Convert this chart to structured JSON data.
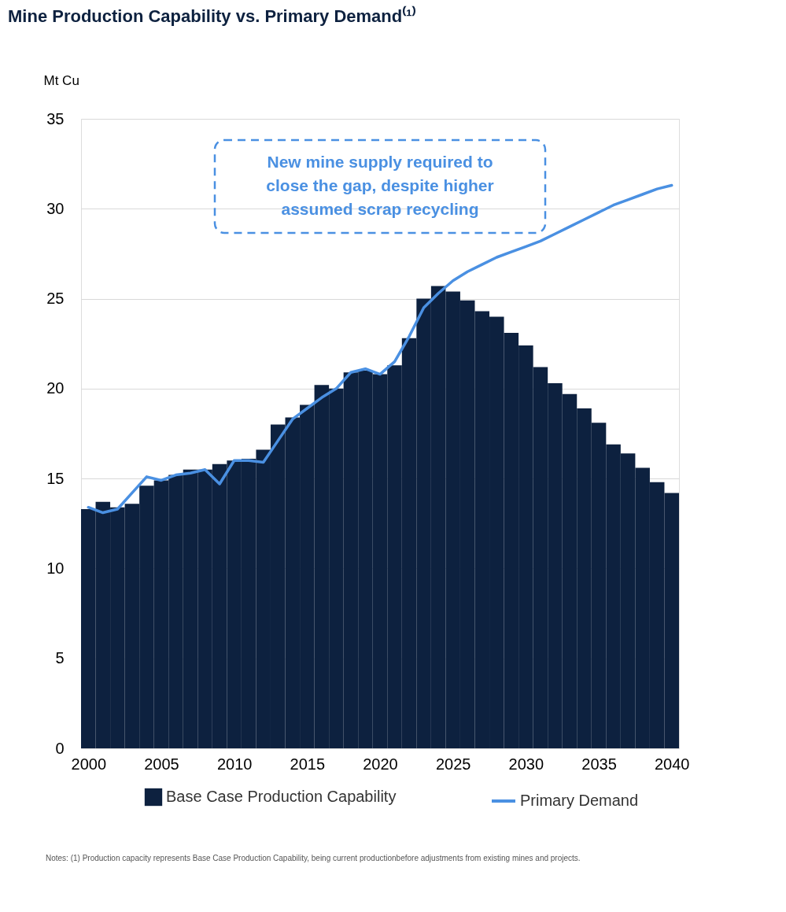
{
  "chart_data": {
    "type": "bar",
    "title": "Mine Production Capability vs. Primary Demand⁽¹⁾",
    "ylabel": "Mt Cu",
    "x": [
      2000,
      2001,
      2002,
      2003,
      2004,
      2005,
      2006,
      2007,
      2008,
      2009,
      2010,
      2011,
      2012,
      2013,
      2014,
      2015,
      2016,
      2017,
      2018,
      2019,
      2020,
      2021,
      2022,
      2023,
      2024,
      2025,
      2026,
      2027,
      2028,
      2029,
      2030,
      2031,
      2032,
      2033,
      2034,
      2035,
      2036,
      2037,
      2038,
      2039,
      2040
    ],
    "series": [
      {
        "name": "Base Case Production Capability",
        "color": "#0d213f",
        "values": [
          13.3,
          13.7,
          13.4,
          13.6,
          14.6,
          14.9,
          15.2,
          15.5,
          15.5,
          15.8,
          16.0,
          16.1,
          16.6,
          18.0,
          18.4,
          19.1,
          20.2,
          20.0,
          20.9,
          21.0,
          20.8,
          21.3,
          22.8,
          25.0,
          25.7,
          25.4,
          24.9,
          24.3,
          24.0,
          23.1,
          22.4,
          21.2,
          20.3,
          19.7,
          18.9,
          18.1,
          16.9,
          16.4,
          15.6,
          14.8,
          14.2
        ]
      },
      {
        "name": "Primary Demand",
        "type": "line",
        "color": "#4a90e2",
        "values": [
          13.4,
          13.1,
          13.3,
          14.2,
          15.1,
          14.9,
          15.2,
          15.3,
          15.5,
          14.7,
          16.0,
          16.0,
          15.9,
          17.1,
          18.3,
          18.9,
          19.5,
          20.0,
          20.9,
          21.1,
          20.8,
          21.5,
          22.9,
          24.5,
          25.3,
          26.0,
          26.5,
          26.9,
          27.3,
          27.6,
          27.9,
          28.2,
          28.6,
          29.0,
          29.4,
          29.8,
          30.2,
          30.5,
          30.8,
          31.1,
          31.3
        ]
      }
    ],
    "xlim": [
      1999.5,
      2040.5
    ],
    "xticks": [
      2000,
      2005,
      2010,
      2015,
      2020,
      2025,
      2030,
      2035,
      2040
    ],
    "ylim": [
      0,
      35
    ],
    "yticks": [
      0,
      5,
      10,
      15,
      20,
      25,
      30,
      35
    ],
    "grid": "y",
    "legend": "bottom",
    "annotations": [
      "New mine supply required to close the gap, despite higher assumed scrap recycling",
      "Notes: (1) Production capacity represents Base Case Production Capability, being current productionbefore adjustments from existing mines and projects."
    ]
  }
}
